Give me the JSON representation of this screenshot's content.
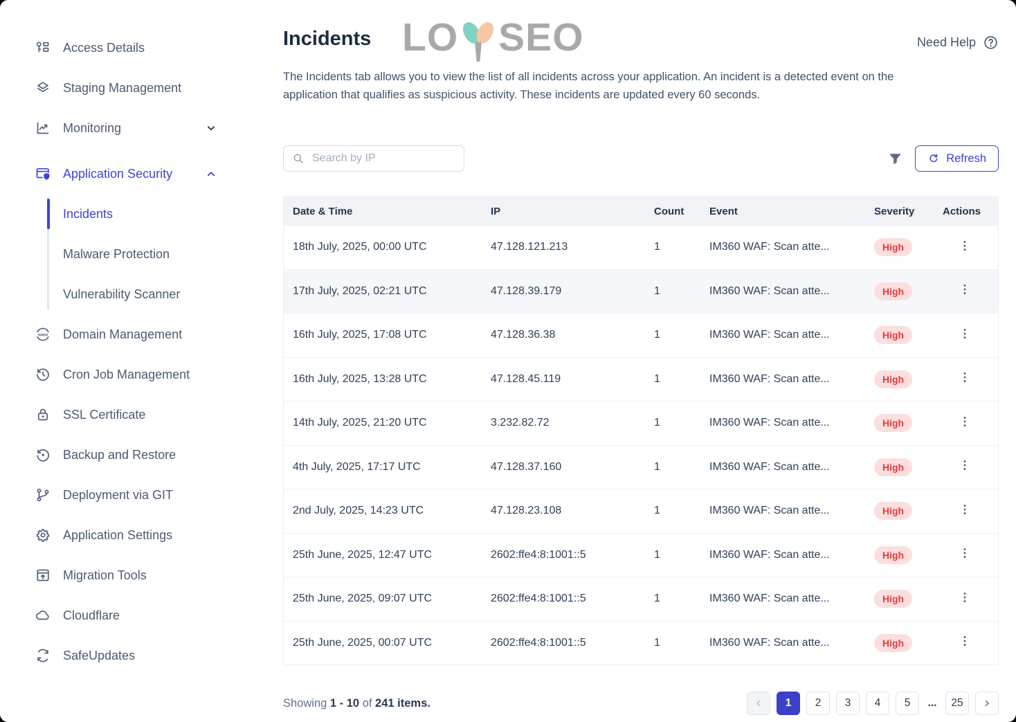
{
  "page": {
    "title": "Incidents",
    "watermark": {
      "left": "LO",
      "right": "SEO"
    },
    "need_help": "Need Help",
    "description": "The Incidents tab allows you to view the list of all incidents across your application. An incident is a detected event on the application that qualifies as suspicious activity. These incidents are updated every 60 seconds."
  },
  "sidebar": {
    "items": [
      {
        "label": "Access Details",
        "icon": "access-key"
      },
      {
        "label": "Staging Management",
        "icon": "layers"
      },
      {
        "label": "Monitoring",
        "icon": "line-chart",
        "chevron": "down"
      },
      {
        "label": "Application Security",
        "icon": "shield-window",
        "chevron": "up",
        "active": true,
        "gap_top": true
      },
      {
        "label": "Incidents",
        "sub": true,
        "active": true
      },
      {
        "label": "Malware Protection",
        "sub": true
      },
      {
        "label": "Vulnerability Scanner",
        "sub": true
      },
      {
        "label": "Domain Management",
        "icon": "globe-www"
      },
      {
        "label": "Cron Job Management",
        "icon": "history-clock"
      },
      {
        "label": "SSL Certificate",
        "icon": "padlock"
      },
      {
        "label": "Backup and Restore",
        "icon": "restore"
      },
      {
        "label": "Deployment via GIT",
        "icon": "git-branch"
      },
      {
        "label": "Application Settings",
        "icon": "gear"
      },
      {
        "label": "Migration Tools",
        "icon": "window-upload"
      },
      {
        "label": "Cloudflare",
        "icon": "cloud"
      },
      {
        "label": "SafeUpdates",
        "icon": "sync"
      }
    ]
  },
  "toolbar": {
    "search_placeholder": "Search by IP",
    "refresh_label": "Refresh"
  },
  "table": {
    "columns": [
      "Date & Time",
      "IP",
      "Count",
      "Event",
      "Severity",
      "Actions"
    ],
    "highlighted_row": 1,
    "rows": [
      {
        "date": "18th July, 2025, 00:00 UTC",
        "ip": "47.128.121.213",
        "count": "1",
        "event": "IM360 WAF: Scan atte...",
        "severity": "High"
      },
      {
        "date": "17th July, 2025, 02:21 UTC",
        "ip": "47.128.39.179",
        "count": "1",
        "event": "IM360 WAF: Scan atte...",
        "severity": "High"
      },
      {
        "date": "16th July, 2025, 17:08 UTC",
        "ip": "47.128.36.38",
        "count": "1",
        "event": "IM360 WAF: Scan atte...",
        "severity": "High"
      },
      {
        "date": "16th July, 2025, 13:28 UTC",
        "ip": "47.128.45.119",
        "count": "1",
        "event": "IM360 WAF: Scan atte...",
        "severity": "High"
      },
      {
        "date": "14th July, 2025, 21:20 UTC",
        "ip": "3.232.82.72",
        "count": "1",
        "event": "IM360 WAF: Scan atte...",
        "severity": "High"
      },
      {
        "date": "4th July, 2025, 17:17 UTC",
        "ip": "47.128.37.160",
        "count": "1",
        "event": "IM360 WAF: Scan atte...",
        "severity": "High"
      },
      {
        "date": "2nd July, 2025, 14:23 UTC",
        "ip": "47.128.23.108",
        "count": "1",
        "event": "IM360 WAF: Scan atte...",
        "severity": "High"
      },
      {
        "date": "25th June, 2025, 12:47 UTC",
        "ip": "2602:ffe4:8:1001::5",
        "count": "1",
        "event": "IM360 WAF: Scan atte...",
        "severity": "High"
      },
      {
        "date": "25th June, 2025, 09:07 UTC",
        "ip": "2602:ffe4:8:1001::5",
        "count": "1",
        "event": "IM360 WAF: Scan atte...",
        "severity": "High"
      },
      {
        "date": "25th June, 2025, 00:07 UTC",
        "ip": "2602:ffe4:8:1001::5",
        "count": "1",
        "event": "IM360 WAF: Scan atte...",
        "severity": "High"
      }
    ]
  },
  "footer": {
    "showing_prefix": "Showing",
    "range": "1 - 10",
    "of": "of",
    "total": "241 items."
  },
  "pagination": {
    "current": "1",
    "pages": [
      "1",
      "2",
      "3",
      "4",
      "5"
    ],
    "ellipsis": "...",
    "last": "25"
  },
  "colors": {
    "accent": "#3c43d6",
    "severity_high_text": "#e23b3b",
    "severity_high_bg": "#fcdede",
    "pagination_active_bg": "#3a41c8",
    "watermark_teal": "#7fd2c4",
    "watermark_peach": "#f8c5a4"
  }
}
